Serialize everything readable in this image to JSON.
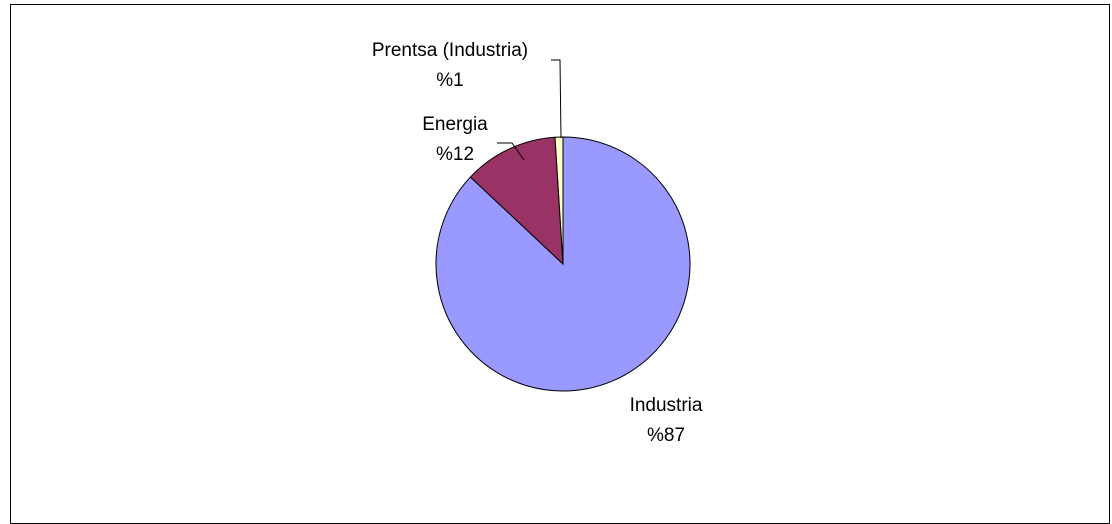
{
  "chart_data": {
    "type": "pie",
    "slices": [
      {
        "label": "Industria",
        "value": 87,
        "display": "%87",
        "color": "#9999FF"
      },
      {
        "label": "Energia",
        "value": 12,
        "display": "%12",
        "color": "#993366"
      },
      {
        "label": "Prentsa (Industria)",
        "value": 1,
        "display": "%1",
        "color": "#FFFFCC"
      }
    ],
    "start_angle_deg": 90,
    "direction": "clockwise",
    "slice_border_color": "#000000",
    "legend": "none"
  }
}
